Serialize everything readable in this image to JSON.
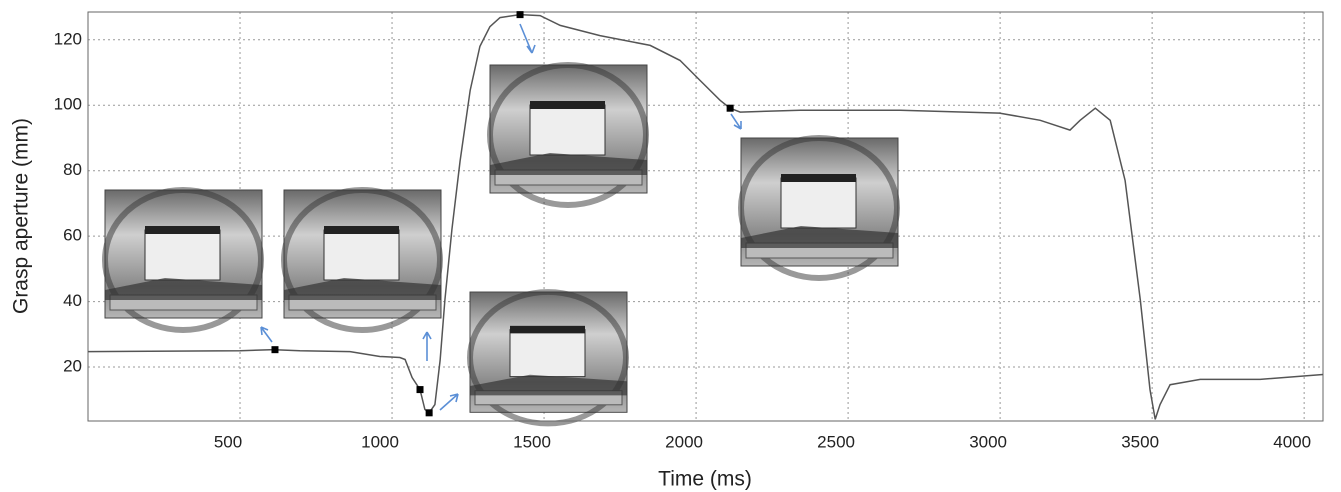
{
  "chart_data": {
    "type": "line",
    "x_label": "Time (ms)",
    "y_label": "Grasp aperture (mm)",
    "x": [
      0,
      500,
      600,
      615,
      697,
      862,
      960,
      1026,
      1043,
      1066,
      1092,
      1108,
      1122,
      1141,
      1158,
      1174,
      1197,
      1224,
      1257,
      1289,
      1322,
      1355,
      1421,
      1487,
      1553,
      1684,
      1849,
      1947,
      2013,
      2079,
      2112,
      2145,
      2342,
      2671,
      2998,
      3132,
      3230,
      3263,
      3313,
      3362,
      3411,
      3461,
      3493,
      3510,
      3526,
      3559,
      3658,
      3855,
      4062
    ],
    "values": [
      24.7,
      25,
      25.3,
      25.3,
      25,
      24.7,
      23.2,
      22.9,
      22.3,
      16.8,
      13.1,
      7,
      6,
      8.5,
      22,
      40.5,
      62,
      83,
      104.6,
      118,
      124,
      126.8,
      127.7,
      127.4,
      124.4,
      121.3,
      118.3,
      113.7,
      107.6,
      101.5,
      99.1,
      97.9,
      98.5,
      98.5,
      97.6,
      95.4,
      92.4,
      95.4,
      99.1,
      95.4,
      77,
      40.5,
      13.1,
      4,
      8.5,
      14.6,
      16.2,
      16.2,
      17.7
    ],
    "color": "#555555",
    "markers": {
      "x": [
        615,
        1092,
        1122,
        1421,
        2112
      ],
      "values": [
        25.3,
        13.1,
        6,
        127.7,
        99.1
      ],
      "color": "#000000"
    },
    "xlim": [
      0,
      4062
    ],
    "ylim": [
      3.5,
      128.5
    ],
    "xticks": [
      500,
      1000,
      1500,
      2000,
      2500,
      3000,
      3500,
      4000
    ],
    "yticks": [
      20,
      40,
      60,
      80,
      100,
      120
    ],
    "grid": true
  }
}
